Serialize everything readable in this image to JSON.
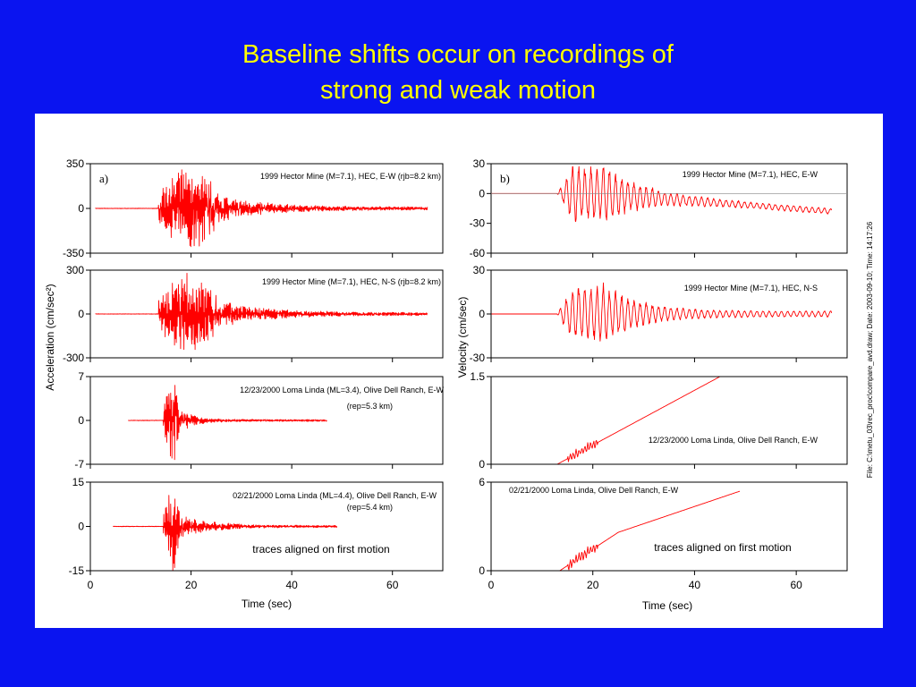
{
  "slide": {
    "title_line1": "Baseline shifts occur on recordings of",
    "title_line2": "strong and weak motion"
  },
  "colors": {
    "background": "#0a14f0",
    "title": "#ffff00",
    "trace": "#ff0000",
    "panel": "#ffffff",
    "zero_line": "#888888"
  },
  "side_note": "File: C:\\metu_03\\rec_proc\\compare_avd.draw; Date: 2003-09-10; Time: 14:17:26",
  "chart_data": [
    {
      "type": "line",
      "panel_label": "a)",
      "xlabel": "Time (sec)",
      "ylabel": "Acceleration (cm/sec²)",
      "xlim": [
        0,
        70
      ],
      "xticks": [
        "0",
        "20",
        "40",
        "60"
      ],
      "panels": [
        {
          "annotation": "1999 Hector Mine (M=7.1), HEC, E-W (rjb=8.2 km)",
          "yticks": [
            "350",
            "0",
            "-350"
          ],
          "ylim": [
            -350,
            350
          ],
          "record": "strong"
        },
        {
          "annotation": "1999 Hector Mine (M=7.1), HEC, N-S (rjb=8.2 km)",
          "yticks": [
            "300",
            "0",
            "-300"
          ],
          "ylim": [
            -300,
            300
          ],
          "record": "strong"
        },
        {
          "annotation": "12/23/2000 Loma Linda (ML=3.4), Olive Dell Ranch, E-W",
          "annotation2": "(rep=5.3 km)",
          "yticks": [
            "7",
            "0",
            "-7"
          ],
          "ylim": [
            -7,
            7
          ],
          "record": "weak"
        },
        {
          "annotation": "02/21/2000 Loma Linda (ML=4.4), Olive Dell Ranch, E-W",
          "annotation2": "(rep=5.4 km)",
          "note": "traces aligned on first motion",
          "yticks": [
            "15",
            "0",
            "-15"
          ],
          "ylim": [
            -15,
            15
          ],
          "record": "weak"
        }
      ]
    },
    {
      "type": "line",
      "panel_label": "b)",
      "xlabel": "Time (sec)",
      "ylabel": "Velocity (cm/sec)",
      "xlim": [
        0,
        70
      ],
      "xticks": [
        "0",
        "20",
        "40",
        "60"
      ],
      "panels": [
        {
          "annotation": "1999 Hector Mine (M=7.1), HEC, E-W",
          "yticks": [
            "30",
            "0",
            "-30",
            "-60"
          ],
          "ylim": [
            -60,
            30
          ],
          "record": "strong"
        },
        {
          "annotation": "1999 Hector Mine (M=7.1), HEC, N-S",
          "yticks": [
            "30",
            "0",
            "-30"
          ],
          "ylim": [
            -30,
            30
          ],
          "record": "strong"
        },
        {
          "annotation": "12/23/2000 Loma Linda, Olive Dell Ranch, E-W",
          "yticks": [
            "1.5",
            "0"
          ],
          "ylim": [
            0,
            1.5
          ],
          "record": "weak",
          "drift": {
            "start_time": 13,
            "end_time": 45,
            "end_value": 1.5
          }
        },
        {
          "annotation": "02/21/2000 Loma Linda, Olive Dell Ranch, E-W",
          "note": "traces aligned on first motion",
          "yticks": [
            "6",
            "0"
          ],
          "ylim": [
            0,
            6
          ],
          "record": "weak",
          "drift": {
            "start_time": 13.5,
            "knee_time": 25,
            "knee_value": 2.6,
            "end_time": 49,
            "end_value": 5.4
          }
        }
      ]
    }
  ]
}
